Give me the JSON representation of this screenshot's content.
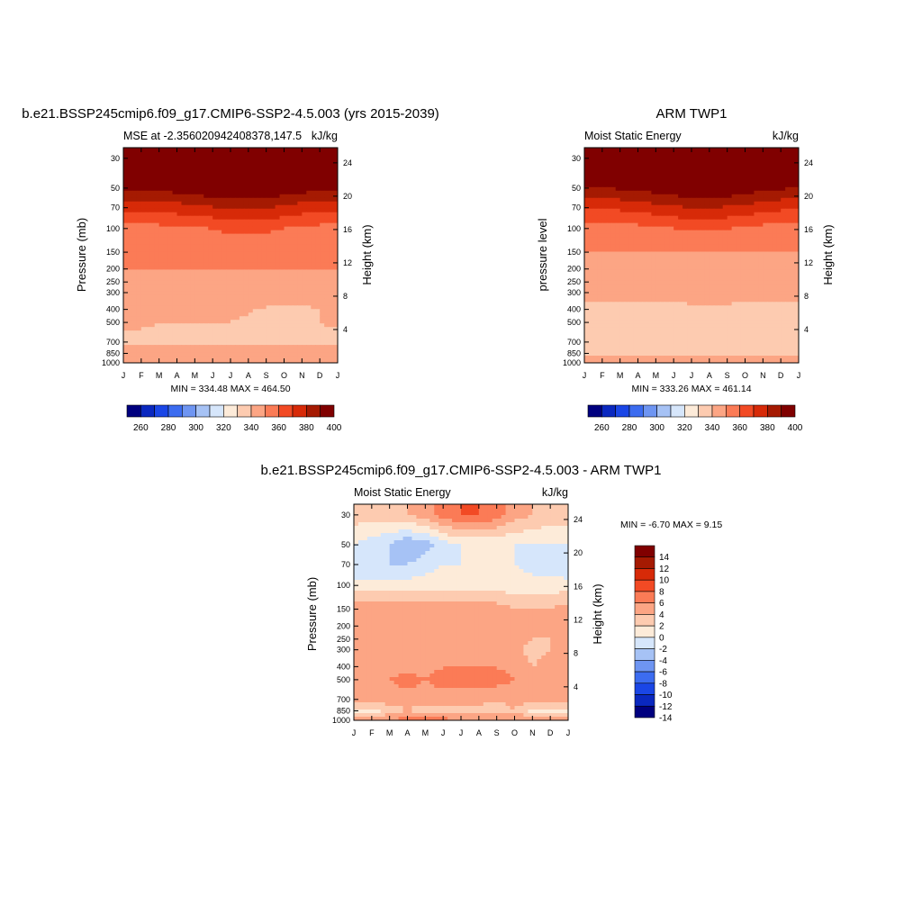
{
  "months": [
    "J",
    "F",
    "M",
    "A",
    "M",
    "J",
    "J",
    "A",
    "S",
    "O",
    "N",
    "D",
    "J"
  ],
  "pressure_ticks": [
    30,
    50,
    70,
    100,
    150,
    200,
    250,
    300,
    400,
    500,
    700,
    850,
    1000
  ],
  "height_ticks_km": [
    4,
    8,
    12,
    16,
    20,
    24
  ],
  "colors": {
    "mse": [
      "#00007f",
      "#0a28c0",
      "#1a46e6",
      "#3c6cf0",
      "#6e95f2",
      "#a6c2f5",
      "#d6e6fb",
      "#fdebd9",
      "#fdcbb0",
      "#fca584",
      "#fb7b56",
      "#f24a24",
      "#d72a08",
      "#a51a02",
      "#800000"
    ],
    "diff": [
      "#00007f",
      "#0a28c0",
      "#1a46e6",
      "#3c6cf0",
      "#6e95f2",
      "#a6c2f5",
      "#d6e6fb",
      "#fdebd9",
      "#fdcbb0",
      "#fca584",
      "#fb7b56",
      "#f24a24",
      "#d72a08",
      "#a51a02",
      "#800000"
    ]
  },
  "panels": {
    "model": {
      "title": "b.e21.BSSP245cmip6.f09_g17.CMIP6-SSP2-4.5.003 (yrs 2015-2039)",
      "left_label": "MSE at -2.356020942408378,147.5",
      "right_label": "kJ/kg",
      "ylabel": "Pressure (mb)",
      "y2label": "Height (km)",
      "stats": "MIN = 334.48 MAX = 464.50"
    },
    "obs": {
      "title": "ARM TWP1",
      "left_label": "Moist Static Energy",
      "right_label": "kJ/kg",
      "ylabel": "pressure level",
      "y2label": "Height (km)",
      "stats": "MIN = 333.26 MAX = 461.14"
    },
    "diff": {
      "title": "b.e21.BSSP245cmip6.f09_g17.CMIP6-SSP2-4.5.003 - ARM TWP1",
      "left_label": "Moist Static Energy",
      "right_label": "kJ/kg",
      "ylabel": "Pressure (mb)",
      "y2label": "Height (km)",
      "stats": "MIN =  -6.70 MAX =   9.15"
    }
  },
  "colorbars": {
    "mse_labels": [
      "260",
      "280",
      "300",
      "320",
      "340",
      "360",
      "380",
      "400"
    ],
    "diff_labels": [
      "14",
      "12",
      "10",
      "8",
      "6",
      "4",
      "2",
      "0",
      "-2",
      "-4",
      "-6",
      "-8",
      "-10",
      "-12",
      "-14"
    ]
  },
  "chart_data": [
    {
      "type": "heatmap",
      "title": "b.e21.BSSP245cmip6.f09_g17.CMIP6-SSP2-4.5.003 (yrs 2015-2039)",
      "ylabel": "Pressure (mb)",
      "y2label": "Height (km)",
      "units": "kJ/kg",
      "x": [
        "J",
        "F",
        "M",
        "A",
        "M",
        "J",
        "J",
        "A",
        "S",
        "O",
        "N",
        "D",
        "J"
      ],
      "y": [
        1000,
        850,
        700,
        500,
        400,
        300,
        250,
        200,
        150,
        100,
        70,
        50,
        30
      ],
      "ylim": [
        1000,
        25
      ],
      "min": 334.48,
      "max": 464.5,
      "z": [
        [
          346,
          346,
          345,
          345,
          346,
          346,
          346,
          346,
          346,
          346,
          346,
          346,
          346
        ],
        [
          343,
          343,
          343,
          343,
          343,
          343,
          343,
          343,
          343,
          343,
          343,
          343,
          343
        ],
        [
          338,
          338,
          338,
          338,
          338,
          338,
          338,
          338,
          338,
          338,
          338,
          338,
          338
        ],
        [
          341,
          341,
          340,
          340,
          340,
          340,
          340,
          338,
          337,
          337,
          337,
          340,
          341
        ],
        [
          342,
          342,
          342,
          342,
          342,
          342,
          342,
          341,
          339,
          338,
          338,
          340,
          342
        ],
        [
          346,
          346,
          346,
          346,
          346,
          346,
          346,
          346,
          346,
          346,
          346,
          346,
          346
        ],
        [
          348,
          348,
          348,
          348,
          348,
          348,
          348,
          348,
          348,
          348,
          348,
          348,
          348
        ],
        [
          350,
          350,
          350,
          350,
          350,
          350,
          350,
          350,
          350,
          350,
          350,
          350,
          350
        ],
        [
          353,
          353,
          353,
          353,
          353,
          354,
          355,
          355,
          355,
          354,
          353,
          353,
          353
        ],
        [
          357,
          357,
          357,
          358,
          359,
          360,
          362,
          362,
          361,
          360,
          358,
          357,
          357
        ],
        [
          372,
          372,
          373,
          375,
          377,
          379,
          382,
          382,
          380,
          378,
          375,
          373,
          372
        ],
        [
          392,
          392,
          393,
          395,
          397,
          399,
          401,
          401,
          399,
          397,
          395,
          393,
          392
        ],
        [
          425,
          425,
          425,
          425,
          425,
          425,
          425,
          425,
          425,
          425,
          425,
          425,
          425
        ]
      ]
    },
    {
      "type": "heatmap",
      "title": "ARM TWP1",
      "ylabel": "pressure level",
      "y2label": "Height (km)",
      "units": "kJ/kg",
      "x": [
        "J",
        "F",
        "M",
        "A",
        "M",
        "J",
        "J",
        "A",
        "S",
        "O",
        "N",
        "D",
        "J"
      ],
      "y": [
        1000,
        850,
        700,
        500,
        400,
        300,
        250,
        200,
        150,
        100,
        70,
        50,
        30
      ],
      "ylim": [
        1000,
        25
      ],
      "min": 333.26,
      "max": 461.14,
      "z": [
        [
          345,
          345,
          345,
          345,
          345,
          345,
          345,
          345,
          345,
          345,
          345,
          345,
          345
        ],
        [
          338,
          338,
          338,
          337,
          338,
          338,
          338,
          338,
          338,
          338,
          338,
          338,
          338
        ],
        [
          336,
          336,
          336,
          336,
          336,
          336,
          336,
          336,
          336,
          336,
          336,
          336,
          336
        ],
        [
          337,
          337,
          337,
          337,
          337,
          337,
          337,
          337,
          337,
          337,
          337,
          337,
          337
        ],
        [
          338,
          338,
          338,
          338,
          338,
          338,
          338,
          338,
          338,
          338,
          338,
          338,
          338
        ],
        [
          342,
          342,
          342,
          342,
          343,
          343,
          344,
          344,
          344,
          343,
          342,
          342,
          342
        ],
        [
          345,
          345,
          345,
          345,
          345,
          345,
          345,
          345,
          345,
          345,
          345,
          345,
          345
        ],
        [
          347,
          347,
          347,
          347,
          347,
          347,
          347,
          347,
          347,
          347,
          347,
          347,
          347
        ],
        [
          350,
          350,
          350,
          350,
          350,
          350,
          350,
          350,
          350,
          350,
          350,
          350,
          350
        ],
        [
          356,
          356,
          356,
          357,
          358,
          360,
          361,
          361,
          360,
          359,
          357,
          356,
          356
        ],
        [
          371,
          371,
          372,
          374,
          376,
          378,
          380,
          380,
          379,
          377,
          374,
          372,
          371
        ],
        [
          390,
          390,
          391,
          393,
          395,
          397,
          399,
          399,
          398,
          396,
          393,
          391,
          390
        ],
        [
          420,
          420,
          420,
          420,
          420,
          420,
          420,
          420,
          420,
          420,
          420,
          420,
          420
        ]
      ]
    },
    {
      "type": "heatmap",
      "title": "b.e21.BSSP245cmip6.f09_g17.CMIP6-SSP2-4.5.003 - ARM TWP1",
      "ylabel": "Pressure (mb)",
      "y2label": "Height (km)",
      "units": "kJ/kg",
      "x": [
        "J",
        "F",
        "M",
        "A",
        "M",
        "J",
        "J",
        "A",
        "S",
        "O",
        "N",
        "D",
        "J"
      ],
      "y": [
        1000,
        850,
        700,
        500,
        400,
        300,
        250,
        200,
        150,
        100,
        70,
        50,
        30
      ],
      "ylim": [
        1000,
        25
      ],
      "min": -6.7,
      "max": 9.15,
      "levels": [
        -14,
        -12,
        -10,
        -8,
        -6,
        -4,
        -2,
        0,
        2,
        4,
        6,
        8,
        10,
        12,
        14
      ],
      "z": [
        [
          4,
          4,
          4,
          5,
          6,
          5,
          4,
          4,
          4,
          4,
          4,
          4,
          4
        ],
        [
          -1,
          -1,
          1,
          2,
          1,
          1,
          1,
          1,
          1,
          2,
          -1,
          -1,
          -1
        ],
        [
          3,
          3,
          3,
          3,
          3,
          3,
          3,
          3,
          2,
          3,
          3,
          3,
          3
        ],
        [
          3,
          3,
          4,
          5,
          4,
          5,
          5,
          5,
          5,
          4,
          3,
          3,
          3
        ],
        [
          3,
          3,
          3,
          3,
          3,
          4,
          4,
          4,
          4,
          3,
          2,
          3,
          3
        ],
        [
          3,
          3,
          3,
          3,
          3,
          3,
          3,
          3,
          3,
          3,
          1,
          2,
          3
        ],
        [
          3,
          3,
          3,
          3,
          3,
          3,
          3,
          3,
          3,
          3,
          2,
          2,
          3
        ],
        [
          3,
          3,
          3,
          3,
          3,
          3,
          4,
          3,
          3,
          3,
          2,
          2,
          3
        ],
        [
          3,
          3,
          3,
          3,
          3,
          3,
          3,
          3,
          3,
          2,
          2,
          2,
          3
        ],
        [
          -1,
          -1,
          -1,
          -1,
          -1,
          -1,
          -1,
          -1,
          -1,
          -1,
          -1,
          -1,
          -1
        ],
        [
          -4,
          -4,
          -4,
          -4,
          -3,
          -2,
          -2,
          -2,
          -2,
          -2,
          -3,
          -3,
          -4
        ],
        [
          -2,
          -3,
          -4,
          -6,
          -5,
          -3,
          -2,
          -2,
          -2,
          -2,
          -2,
          -2,
          -2
        ],
        [
          1,
          1,
          1,
          2,
          3,
          5,
          6,
          6,
          5,
          3,
          2,
          1,
          1
        ]
      ]
    }
  ]
}
